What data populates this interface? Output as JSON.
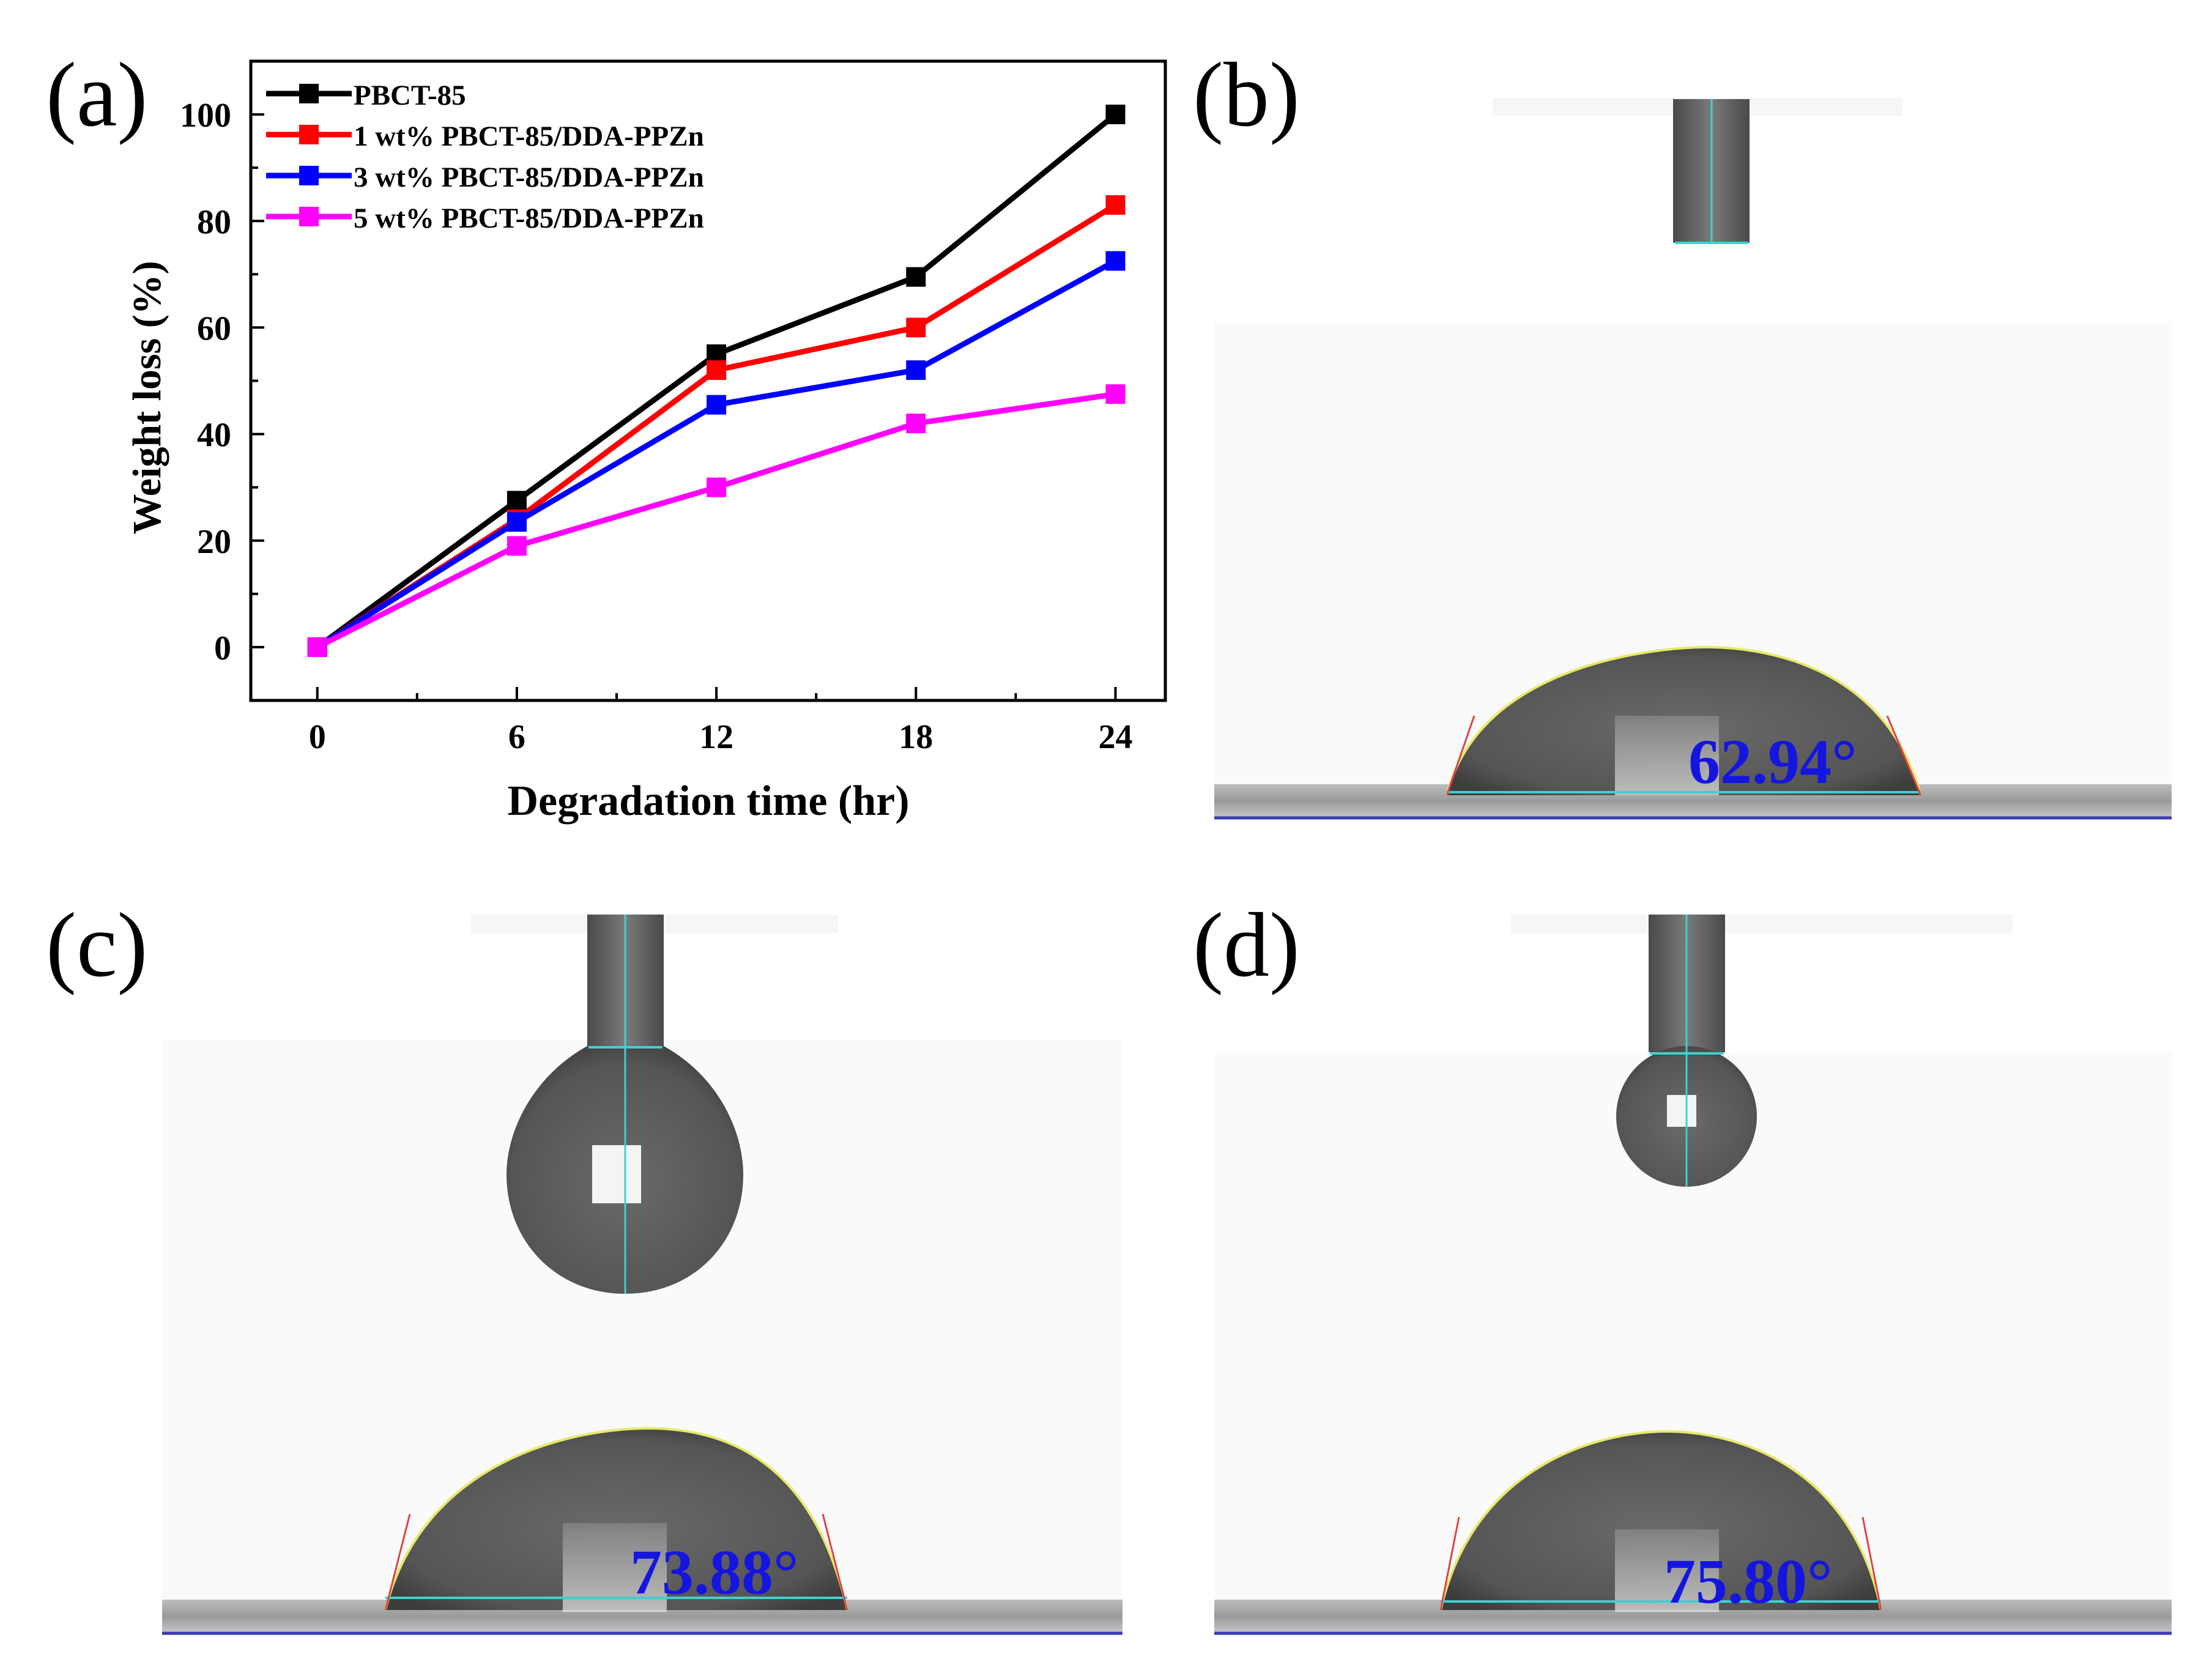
{
  "panels": {
    "a": {
      "letter": "(a)"
    },
    "b": {
      "letter": "(b)",
      "angle": "62.94°"
    },
    "c": {
      "letter": "(c)",
      "angle": "73.88°"
    },
    "d": {
      "letter": "(d)",
      "angle": "75.80°"
    }
  },
  "chart_data": {
    "type": "line",
    "title": "",
    "xlabel": "Degradation time (hr)",
    "ylabel": "Weight loss (%)",
    "x": [
      0,
      6,
      12,
      18,
      24
    ],
    "xticks": [
      "0",
      "6",
      "12",
      "18",
      "24"
    ],
    "yticks": [
      "0",
      "20",
      "40",
      "60",
      "80",
      "100"
    ],
    "xlim": [
      -2,
      25.5
    ],
    "ylim": [
      -10,
      110
    ],
    "legend_position": "top-left",
    "series": [
      {
        "name": "PBCT-85",
        "color": "#000000",
        "values": [
          0,
          27.5,
          55,
          69.5,
          100
        ]
      },
      {
        "name": "1 wt% PBCT-85/DDA-PPZn",
        "color": "#ff0000",
        "values": [
          0,
          24,
          52,
          60,
          83
        ]
      },
      {
        "name": "3 wt% PBCT-85/DDA-PPZn",
        "color": "#0000ff",
        "values": [
          0,
          23.5,
          45.5,
          52,
          72.5
        ]
      },
      {
        "name": "5 wt% PBCT-85/DDA-PPZn",
        "color": "#ff00ff",
        "values": [
          0,
          19,
          30,
          42,
          47.5
        ]
      }
    ]
  }
}
